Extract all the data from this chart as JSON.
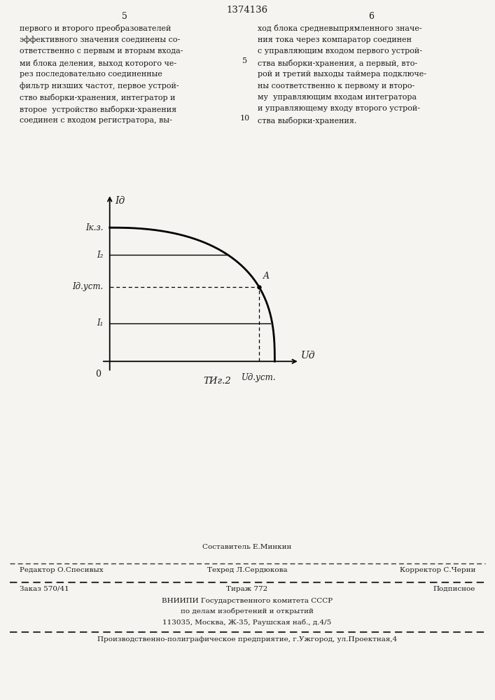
{
  "page_title": "1374136",
  "col_left_num": "5",
  "col_right_num": "6",
  "text_left": [
    "первого и второго преобразователей",
    "эффективного значения соединены со-",
    "ответственно с первым и вторым входа-",
    "ми блока деления, выход которого че-",
    "рез последовательно соединенные",
    "фильтр низших частот, первое устрой-",
    "ство выборки-хранения, интегратор и",
    "второе  устройство выборки-хранения",
    "соединен с входом регистратора, вы-"
  ],
  "text_right": [
    "ход блока средневыпрямленного значе-",
    "ния тока через компаратор соединен",
    "с управляющим входом первого устрой-",
    "ства выборки-хранения, а первый, вто-",
    "рой и третий выходы таймера подключе-",
    "ны соответственно к первому и второ-",
    "му  управляющим входам интегратора",
    "и управляющему входу второго устрой-",
    "ства выборки-хранения."
  ],
  "fig_label": "ΤИг.2",
  "axis_xlabel": "Uд",
  "axis_ylabel": "Iд",
  "label_Ikz": "Iк.з.",
  "label_I2": "I₂",
  "label_Iaust": "Iд.уст.",
  "label_I1": "I₁",
  "label_Uaust": "Uд.уст.",
  "label_A": "A",
  "label_O": "0",
  "bg_color": "#f5f4f0",
  "text_color": "#1a1a1a",
  "footer_editor": "Редактор О.Спесивых",
  "footer_comp": "Составитель Е.Минкин",
  "footer_tech": "Техред Л.Сердюкова",
  "footer_corr": "Корректор С.Черни",
  "footer_order": "Заказ 570/41",
  "footer_tirazh": "Тираж 772",
  "footer_podp": "Подписное",
  "footer_vniip1": "ВНИИПИ Государственного комитета СССР",
  "footer_vniip2": "по делам изобретений и открытий",
  "footer_addr": "113035, Москва, Ж-35, Раушская наб., д.4/5",
  "footer_last": "Производственно-полиграфическое предприятие, г.Ужгород, ул.Проектная,4"
}
